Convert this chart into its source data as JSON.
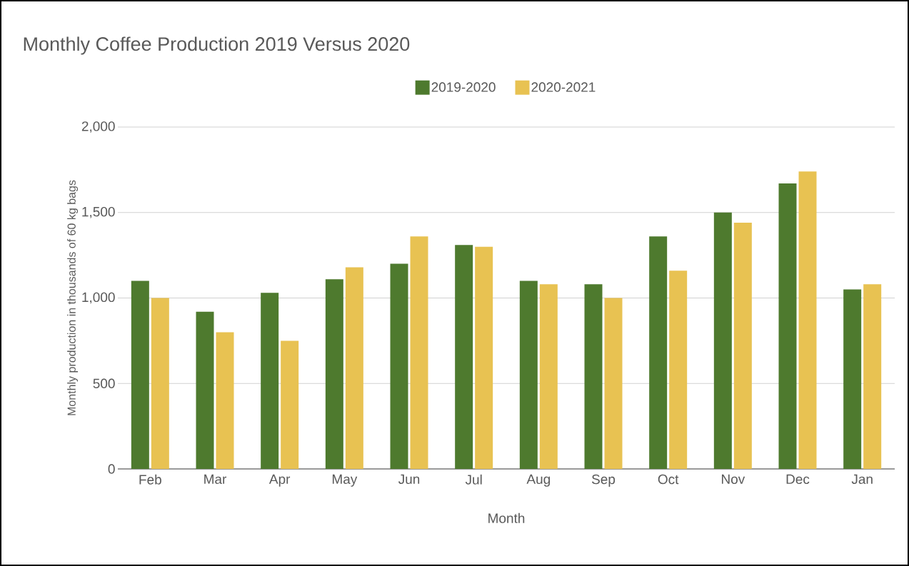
{
  "chart_data": {
    "type": "bar",
    "title": "Monthly Coffee Production 2019 Versus 2020",
    "xlabel": "Month",
    "ylabel": "Monthly production in thousands of 60 kg bags",
    "categories": [
      "Feb",
      "Mar",
      "Apr",
      "May",
      "Jun",
      "Jul",
      "Aug",
      "Sep",
      "Oct",
      "Nov",
      "Dec",
      "Jan"
    ],
    "series": [
      {
        "name": "2019-2020",
        "color": "#4e7a2e",
        "values": [
          1100,
          920,
          1030,
          1110,
          1200,
          1310,
          1100,
          1080,
          1360,
          1500,
          1670,
          1050
        ]
      },
      {
        "name": "2020-2021",
        "color": "#e8c252",
        "values": [
          1000,
          800,
          750,
          1180,
          1360,
          1300,
          1080,
          1000,
          1160,
          1440,
          1740,
          1080
        ]
      }
    ],
    "ylim": [
      0,
      2000
    ],
    "yticks": [
      {
        "value": 0,
        "label": "0"
      },
      {
        "value": 500,
        "label": "500"
      },
      {
        "value": 1000,
        "label": "1,000"
      },
      {
        "value": 1500,
        "label": "1,500"
      },
      {
        "value": 2000,
        "label": "2,000"
      }
    ],
    "grid": "y",
    "legend": "top"
  }
}
